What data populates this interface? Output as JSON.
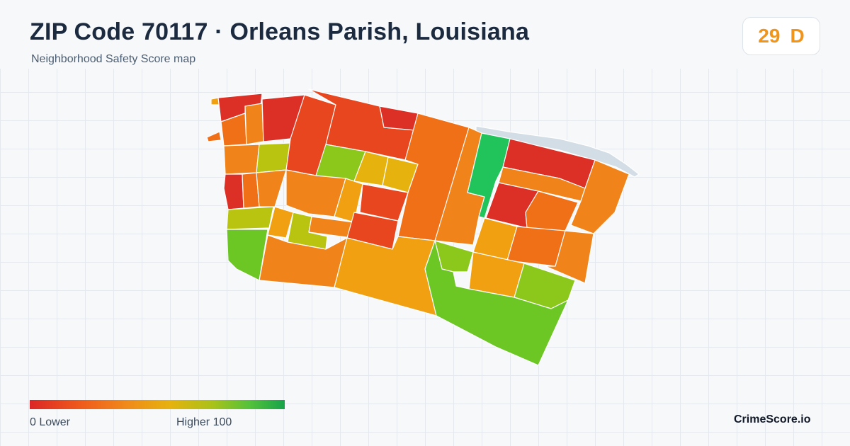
{
  "header": {
    "title": "ZIP Code 70117 · Orleans Parish, Louisiana",
    "subtitle": "Neighborhood Safety Score map"
  },
  "score_badge": {
    "score": "29",
    "grade": "D",
    "color": "#f0941a"
  },
  "legend": {
    "min_label": "0  Lower",
    "max_label": "Higher  100",
    "colors": [
      "#dc2626",
      "#ef5a1c",
      "#f08a1a",
      "#e6b20e",
      "#a8c21a",
      "#55c23a",
      "#16a34a"
    ]
  },
  "brand": "CrimeScore.io",
  "map": {
    "levee_color": "#d3dde6",
    "region_colors": {
      "red": "#dc2f26",
      "red_orange": "#e8461f",
      "orange": "#f07018",
      "dark_orange": "#f0841a",
      "amber": "#f0a010",
      "gold": "#e6b20e",
      "yellow_green": "#b8c410",
      "lime": "#8cc81c",
      "green": "#6cc624",
      "bright_green": "#20c45a"
    }
  }
}
